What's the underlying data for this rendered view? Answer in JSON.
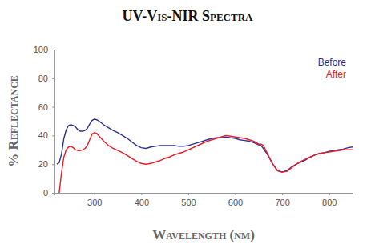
{
  "chart_data": {
    "type": "line",
    "title": "UV-Vis-NIR Spectra",
    "x_label": "Wavelength (nm)",
    "y_label": "% Reflectance",
    "x": [
      220,
      225,
      230,
      235,
      240,
      245,
      250,
      255,
      260,
      265,
      270,
      275,
      280,
      285,
      290,
      295,
      300,
      305,
      310,
      320,
      330,
      340,
      350,
      360,
      370,
      380,
      390,
      400,
      410,
      420,
      430,
      440,
      450,
      460,
      470,
      480,
      490,
      500,
      510,
      520,
      530,
      540,
      550,
      560,
      570,
      580,
      590,
      600,
      610,
      620,
      630,
      640,
      650,
      655,
      660,
      670,
      680,
      690,
      700,
      710,
      720,
      730,
      740,
      750,
      760,
      770,
      780,
      790,
      800,
      810,
      820,
      830,
      840,
      850
    ],
    "series": [
      {
        "name": "Before",
        "color": "#2e3192",
        "values": [
          20,
          21,
          27,
          38,
          44,
          47,
          47.5,
          47,
          46,
          44,
          43,
          43,
          43.5,
          45,
          48,
          50.5,
          51.5,
          51,
          50,
          47.5,
          45.5,
          43.5,
          42,
          40,
          38,
          35.5,
          33,
          31.5,
          31,
          32,
          32.5,
          33,
          33,
          33,
          33,
          32.5,
          32.5,
          33,
          34,
          35,
          36,
          37,
          38,
          38.5,
          38.5,
          39,
          38.5,
          38,
          37,
          36.5,
          36,
          35,
          33.5,
          33,
          31,
          26,
          20,
          15.5,
          14.5,
          15.5,
          18,
          20,
          21.5,
          23,
          25,
          26.5,
          27.5,
          28,
          29,
          29.5,
          30,
          30.5,
          31.5,
          32
        ]
      },
      {
        "name": "After",
        "color": "#ed1c24",
        "values": [
          null,
          0,
          14,
          25,
          30,
          32,
          32.5,
          31.5,
          30,
          29.5,
          29.5,
          30,
          31,
          33,
          37,
          41,
          42,
          41.5,
          39.5,
          36,
          33,
          31,
          29.5,
          28,
          26,
          24,
          22,
          20.5,
          20,
          20.5,
          21.5,
          22.5,
          24,
          25,
          26.5,
          27.5,
          28.5,
          30,
          31.5,
          33,
          34.5,
          36,
          37,
          38,
          39,
          40,
          39.5,
          39,
          38.5,
          38,
          37,
          36,
          34,
          34,
          33,
          26.5,
          20,
          15.5,
          14.5,
          15,
          17.5,
          20,
          22,
          23.5,
          25,
          26.5,
          27.5,
          28,
          28.5,
          29,
          29.5,
          30,
          30,
          30
        ]
      }
    ],
    "xlim": [
      215,
      850
    ],
    "xticks": [
      300,
      400,
      500,
      600,
      700,
      800
    ],
    "ylim": [
      0,
      100
    ],
    "yticks": [
      0,
      20,
      40,
      60,
      80,
      100
    ],
    "grid": false,
    "legend": "upper right"
  }
}
